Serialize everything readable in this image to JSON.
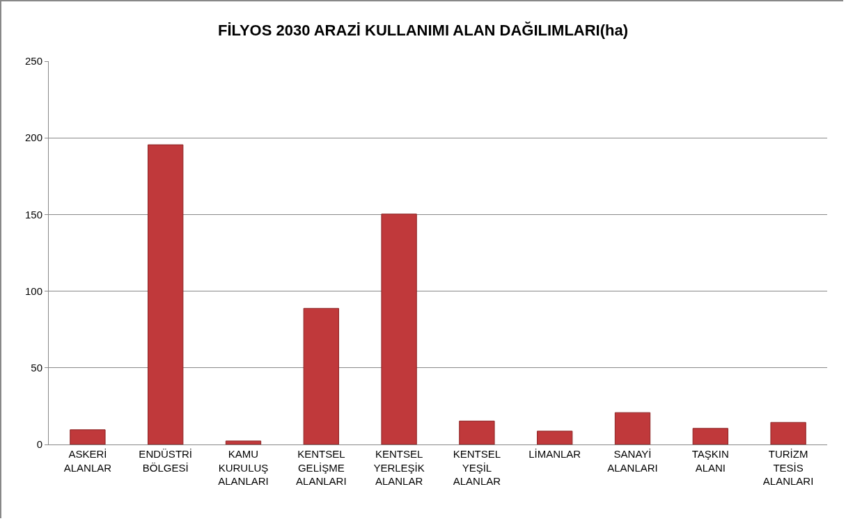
{
  "chart_data": {
    "type": "bar",
    "title": "FİLYOS 2030 ARAZİ KULLANIMI ALAN DAĞILIMLARI(ha)",
    "categories": [
      "ASKERİ ALANLAR",
      "ENDÜSTRİ BÖLGESİ",
      "KAMU KURULUŞ ALANLARI",
      "KENTSEL GELİŞME ALANLARI",
      "KENTSEL YERLEŞİK ALANLAR",
      "KENTSEL YEŞİL ALANLAR",
      "LİMANLAR",
      "SANAYİ ALANLARI",
      "TAŞKIN ALANI",
      "TURİZM TESİS ALANLARI"
    ],
    "values": [
      9.6,
      195.5,
      2.3,
      88.8,
      150.3,
      15.3,
      8.7,
      20.8,
      10.5,
      14.4
    ],
    "color": "#c0393b",
    "ylim": [
      0,
      250
    ],
    "yticks": [
      0,
      50,
      100,
      150,
      200,
      250
    ],
    "grid": "y"
  }
}
